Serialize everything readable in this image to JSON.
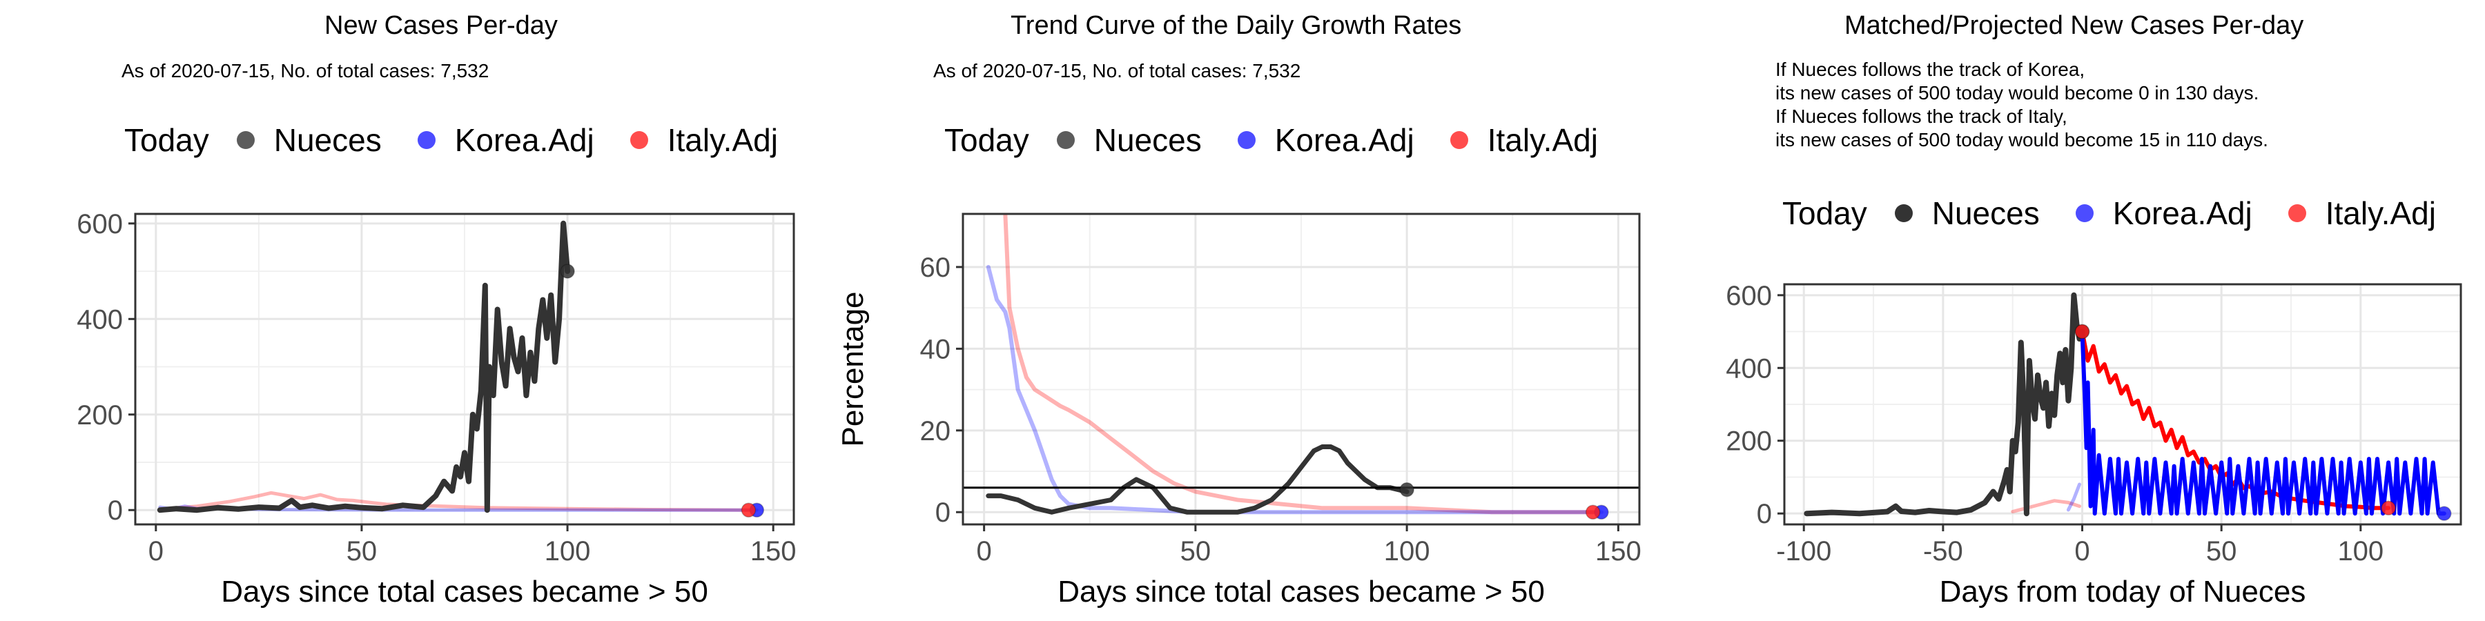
{
  "chart_data": [
    {
      "type": "line",
      "title": "New Cases Per-day",
      "subtitle": "As of 2020-07-15, No. of total cases: 7,532",
      "legend": {
        "title": "Today",
        "placement": "top",
        "items": [
          {
            "name": "Nueces",
            "color": "#333333"
          },
          {
            "name": "Korea.Adj",
            "color": "#1f1fff"
          },
          {
            "name": "Italy.Adj",
            "color": "#ff1f1f"
          }
        ]
      },
      "xlabel": "Days since total cases became > 50",
      "ylabel": "",
      "xlim": [
        -5,
        155
      ],
      "ylim": [
        -30,
        620
      ],
      "xticks": [
        0,
        50,
        100,
        150
      ],
      "yticks": [
        0,
        200,
        400,
        600
      ],
      "grid": true,
      "series": [
        {
          "name": "Italy.Adj",
          "color": "#ff0000",
          "opacity": 0.3,
          "width": 5,
          "x": [
            1,
            10,
            18,
            24,
            28,
            32,
            36,
            40,
            44,
            48,
            52,
            56,
            62,
            70,
            80,
            100,
            120,
            144
          ],
          "y": [
            2,
            8,
            18,
            28,
            36,
            30,
            24,
            32,
            22,
            20,
            16,
            12,
            10,
            8,
            5,
            3,
            1,
            0
          ]
        },
        {
          "name": "Korea.Adj",
          "color": "#0000ff",
          "opacity": 0.3,
          "width": 5,
          "x": [
            1,
            4,
            7,
            10,
            14,
            20,
            30,
            60,
            100,
            146
          ],
          "y": [
            6,
            2,
            8,
            3,
            5,
            2,
            1,
            0,
            0,
            0
          ]
        },
        {
          "name": "Nueces",
          "color": "#333333",
          "opacity": 1,
          "width": 8,
          "x": [
            1,
            5,
            10,
            15,
            20,
            25,
            30,
            33,
            35,
            38,
            42,
            46,
            50,
            55,
            60,
            65,
            68,
            70,
            72,
            73,
            74,
            75,
            76,
            77,
            78,
            79,
            80,
            80.5,
            81,
            82,
            83,
            84,
            85,
            86,
            87,
            88,
            89,
            90,
            91,
            92,
            93,
            94,
            95,
            96,
            97,
            98,
            99,
            100
          ],
          "y": [
            0,
            3,
            0,
            5,
            2,
            6,
            4,
            20,
            6,
            10,
            4,
            8,
            5,
            3,
            10,
            6,
            30,
            60,
            40,
            90,
            70,
            120,
            60,
            200,
            170,
            250,
            470,
            0,
            300,
            240,
            420,
            310,
            260,
            380,
            320,
            290,
            360,
            240,
            330,
            270,
            380,
            440,
            360,
            450,
            310,
            400,
            600,
            500
          ]
        }
      ],
      "today_points": [
        {
          "name": "Nueces",
          "x": 100,
          "y": 500,
          "color": "#333333"
        },
        {
          "name": "Korea.Adj",
          "x": 146,
          "y": 0,
          "color": "#1f1fff"
        },
        {
          "name": "Italy.Adj",
          "x": 144,
          "y": 0,
          "color": "#ff1f1f"
        }
      ]
    },
    {
      "type": "line",
      "title": "Trend Curve of the Daily Growth Rates",
      "subtitle": "As of 2020-07-15, No. of total cases: 7,532",
      "legend": {
        "title": "Today",
        "placement": "top",
        "items": [
          {
            "name": "Nueces",
            "color": "#333333"
          },
          {
            "name": "Korea.Adj",
            "color": "#1f1fff"
          },
          {
            "name": "Italy.Adj",
            "color": "#ff1f1f"
          }
        ]
      },
      "xlabel": "Days since total cases became > 50",
      "ylabel": "Percentage",
      "xlim": [
        -5,
        155
      ],
      "ylim": [
        -3,
        73
      ],
      "xticks": [
        0,
        50,
        100,
        150
      ],
      "yticks": [
        0,
        20,
        40,
        60
      ],
      "grid": true,
      "hline": 6,
      "series": [
        {
          "name": "Italy.Adj",
          "color": "#ff0000",
          "opacity": 0.3,
          "width": 6,
          "x": [
            5,
            6,
            8,
            10,
            12,
            15,
            18,
            20,
            25,
            30,
            35,
            40,
            45,
            50,
            55,
            60,
            70,
            80,
            100,
            120,
            144
          ],
          "y": [
            73,
            50,
            40,
            33,
            30,
            28,
            26,
            25,
            22,
            18,
            14,
            10,
            7,
            5,
            4,
            3,
            2,
            1,
            1,
            0,
            0
          ]
        },
        {
          "name": "Korea.Adj",
          "color": "#0000ff",
          "opacity": 0.3,
          "width": 6,
          "x": [
            1,
            3,
            5,
            6,
            8,
            10,
            12,
            14,
            16,
            18,
            20,
            25,
            30,
            50,
            100,
            146
          ],
          "y": [
            60,
            52,
            49,
            45,
            30,
            25,
            20,
            14,
            8,
            4,
            2,
            1,
            1,
            0,
            0,
            0
          ]
        },
        {
          "name": "Nueces",
          "color": "#333333",
          "opacity": 1,
          "width": 7,
          "x": [
            1,
            4,
            8,
            12,
            16,
            20,
            25,
            30,
            33,
            36,
            40,
            44,
            48,
            52,
            56,
            60,
            64,
            68,
            72,
            75,
            78,
            80,
            82,
            84,
            86,
            88,
            90,
            93,
            96,
            100
          ],
          "y": [
            4,
            4,
            3,
            1,
            0,
            1,
            2,
            3,
            6,
            8,
            6,
            1,
            0,
            0,
            0,
            0,
            1,
            3,
            7,
            11,
            15,
            16,
            16,
            15,
            12,
            10,
            8,
            6,
            6,
            5
          ]
        }
      ],
      "today_points": [
        {
          "name": "Nueces",
          "x": 100,
          "y": 5.5,
          "color": "#333333"
        },
        {
          "name": "Korea.Adj",
          "x": 146,
          "y": 0,
          "color": "#1f1fff"
        },
        {
          "name": "Italy.Adj",
          "x": 144,
          "y": 0,
          "color": "#ff1f1f"
        }
      ]
    },
    {
      "type": "line",
      "title": "Matched/Projected New Cases Per-day",
      "notes": [
        "If Nueces follows the track of Korea,",
        "its new cases of 500 today would become 0 in 130 days.",
        "If Nueces follows the track of Italy,",
        "its new cases of 500 today would become 15 in 110 days."
      ],
      "legend": {
        "title": "Today",
        "placement": "top",
        "items": [
          {
            "name": "Nueces",
            "color": "#000000"
          },
          {
            "name": "Korea.Adj",
            "color": "#1f1fff"
          },
          {
            "name": "Italy.Adj",
            "color": "#ff1f1f"
          }
        ]
      },
      "xlabel": "Days from today of Nueces",
      "ylabel": "",
      "xlim": [
        -107,
        136
      ],
      "ylim": [
        -30,
        630
      ],
      "xticks": [
        -100,
        -50,
        0,
        50,
        100
      ],
      "yticks": [
        0,
        200,
        400,
        600
      ],
      "grid": true,
      "series": [
        {
          "name": "Italy.Adj (past)",
          "color": "#ff0000",
          "opacity": 0.3,
          "width": 5,
          "x": [
            -25,
            -20,
            -15,
            -10,
            -5,
            -1
          ],
          "y": [
            5,
            15,
            25,
            35,
            30,
            20
          ]
        },
        {
          "name": "Korea.Adj (past)",
          "color": "#0000ff",
          "opacity": 0.3,
          "width": 5,
          "x": [
            -5,
            -3,
            -1
          ],
          "y": [
            10,
            40,
            80
          ]
        },
        {
          "name": "Nueces",
          "color": "#333333",
          "opacity": 1,
          "width": 8,
          "x": [
            -99,
            -90,
            -80,
            -70,
            -67,
            -65,
            -60,
            -55,
            -50,
            -45,
            -40,
            -35,
            -32,
            -30,
            -28,
            -27,
            -26,
            -25,
            -24,
            -23,
            -22,
            -21,
            -20,
            -19.5,
            -19,
            -18,
            -17,
            -16,
            -15,
            -14,
            -13,
            -12,
            -11,
            -10,
            -9,
            -8,
            -7,
            -6,
            -5,
            -4,
            -3,
            -2,
            -1,
            0
          ],
          "y": [
            0,
            3,
            0,
            5,
            20,
            6,
            3,
            8,
            5,
            3,
            10,
            30,
            60,
            40,
            90,
            120,
            60,
            200,
            170,
            250,
            470,
            300,
            0,
            240,
            420,
            310,
            260,
            380,
            320,
            290,
            360,
            240,
            330,
            270,
            380,
            440,
            360,
            450,
            310,
            400,
            600,
            520,
            480,
            500
          ]
        },
        {
          "name": "Italy.Adj",
          "color": "#ff0000",
          "opacity": 1,
          "width": 6,
          "x": [
            0,
            2,
            4,
            6,
            8,
            10,
            12,
            14,
            16,
            18,
            20,
            22,
            24,
            26,
            28,
            30,
            32,
            34,
            36,
            38,
            40,
            42,
            44,
            46,
            48,
            50,
            52,
            54,
            56,
            58,
            60,
            64,
            68,
            72,
            76,
            80,
            85,
            90,
            95,
            100,
            105,
            110
          ],
          "y": [
            500,
            420,
            460,
            390,
            410,
            360,
            380,
            330,
            350,
            300,
            310,
            260,
            290,
            240,
            250,
            200,
            230,
            180,
            210,
            160,
            170,
            140,
            150,
            120,
            130,
            100,
            110,
            80,
            95,
            70,
            75,
            55,
            60,
            45,
            40,
            35,
            30,
            25,
            20,
            18,
            15,
            15
          ]
        },
        {
          "name": "Korea.Adj",
          "color": "#0000ff",
          "opacity": 1,
          "width": 6,
          "x": [
            0,
            1,
            1.5,
            2,
            3,
            4,
            4.5,
            6,
            8,
            10,
            12,
            13,
            14,
            16,
            18,
            20,
            22,
            23,
            24,
            26,
            28,
            30,
            32,
            33,
            34,
            36,
            38,
            40,
            42,
            43,
            44,
            46,
            48,
            50,
            52,
            53,
            54,
            56,
            58,
            60,
            62,
            63,
            64,
            66,
            68,
            70,
            72,
            73,
            74,
            76,
            78,
            80,
            82,
            83,
            84,
            86,
            88,
            90,
            92,
            93,
            94,
            96,
            98,
            100,
            102,
            103,
            104,
            106,
            108,
            110,
            112,
            113,
            114,
            116,
            118,
            120,
            122,
            123,
            124,
            126,
            128,
            130
          ],
          "y": [
            500,
            300,
            180,
            360,
            20,
            230,
            0,
            160,
            0,
            150,
            0,
            150,
            0,
            140,
            0,
            150,
            0,
            140,
            0,
            150,
            0,
            140,
            0,
            130,
            0,
            150,
            0,
            140,
            0,
            150,
            0,
            130,
            0,
            140,
            0,
            150,
            0,
            130,
            0,
            150,
            0,
            140,
            0,
            150,
            0,
            140,
            0,
            150,
            0,
            140,
            0,
            150,
            0,
            140,
            0,
            150,
            0,
            150,
            0,
            140,
            0,
            150,
            0,
            140,
            0,
            150,
            0,
            150,
            0,
            140,
            0,
            150,
            0,
            140,
            0,
            150,
            0,
            150,
            0,
            140,
            0,
            0
          ]
        }
      ],
      "today_points": [
        {
          "name": "Nueces",
          "x": 0,
          "y": 500,
          "color": "#000000"
        },
        {
          "name": "Korea.Adj",
          "x": 130,
          "y": 0,
          "color": "#1f1fff"
        },
        {
          "name": "Italy.Adj",
          "x": 110,
          "y": 15,
          "color": "#ff1f1f"
        },
        {
          "name": "Italy.Adj start",
          "x": 0,
          "y": 500,
          "color": "#ff1f1f"
        }
      ]
    }
  ]
}
